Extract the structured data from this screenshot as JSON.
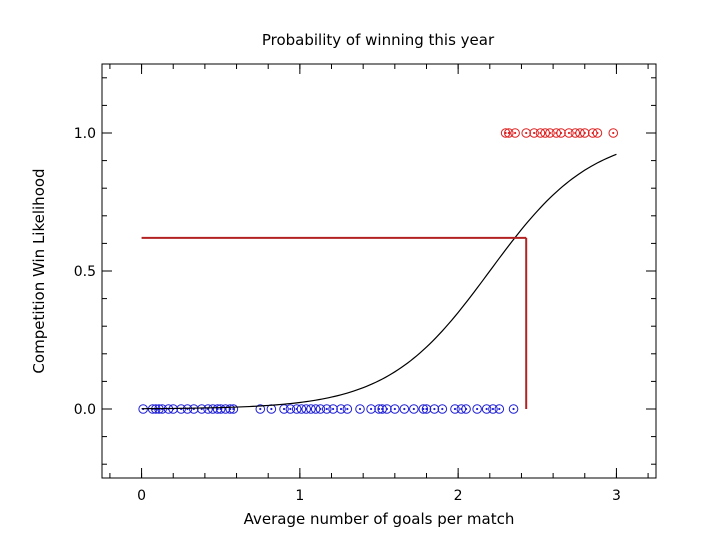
{
  "chart_data": {
    "type": "scatter",
    "title": "Probability of winning this year",
    "xlabel": "Average number of goals per match",
    "ylabel": "Competition Win Likelihood",
    "xlim": [
      -0.25,
      3.25
    ],
    "ylim": [
      -0.25,
      1.25
    ],
    "x_ticks": [
      0,
      1,
      2,
      3
    ],
    "x_tick_labels": [
      "0",
      "1",
      "2",
      "3"
    ],
    "y_ticks": [
      0,
      0.5,
      1
    ],
    "y_tick_labels": [
      "0.0",
      "0.5",
      "1.0"
    ],
    "grid": false,
    "logistic_curve": {
      "midpoint": 2.2,
      "slope": 3.1,
      "x_range": [
        0,
        3
      ]
    },
    "threshold": {
      "x": 2.43,
      "y": 0.62
    },
    "series": [
      {
        "y": 0,
        "color": "#1f1fd6",
        "x": [
          0.01,
          0.07,
          0.09,
          0.11,
          0.13,
          0.17,
          0.2,
          0.25,
          0.29,
          0.33,
          0.38,
          0.42,
          0.45,
          0.48,
          0.5,
          0.53,
          0.56,
          0.58,
          0.75,
          0.82,
          0.9,
          0.94,
          0.98,
          1.01,
          1.04,
          1.07,
          1.1,
          1.13,
          1.17,
          1.21,
          1.26,
          1.3,
          1.38,
          1.45,
          1.5,
          1.52,
          1.55,
          1.6,
          1.66,
          1.72,
          1.78,
          1.8,
          1.85,
          1.9,
          1.98,
          2.02,
          2.05,
          2.12,
          2.18,
          2.22,
          2.26,
          2.35
        ]
      },
      {
        "y": 1,
        "color": "#e02020",
        "x": [
          2.3,
          2.32,
          2.36,
          2.43,
          2.48,
          2.52,
          2.55,
          2.58,
          2.62,
          2.65,
          2.7,
          2.74,
          2.77,
          2.8,
          2.85,
          2.88,
          2.98
        ]
      }
    ]
  }
}
